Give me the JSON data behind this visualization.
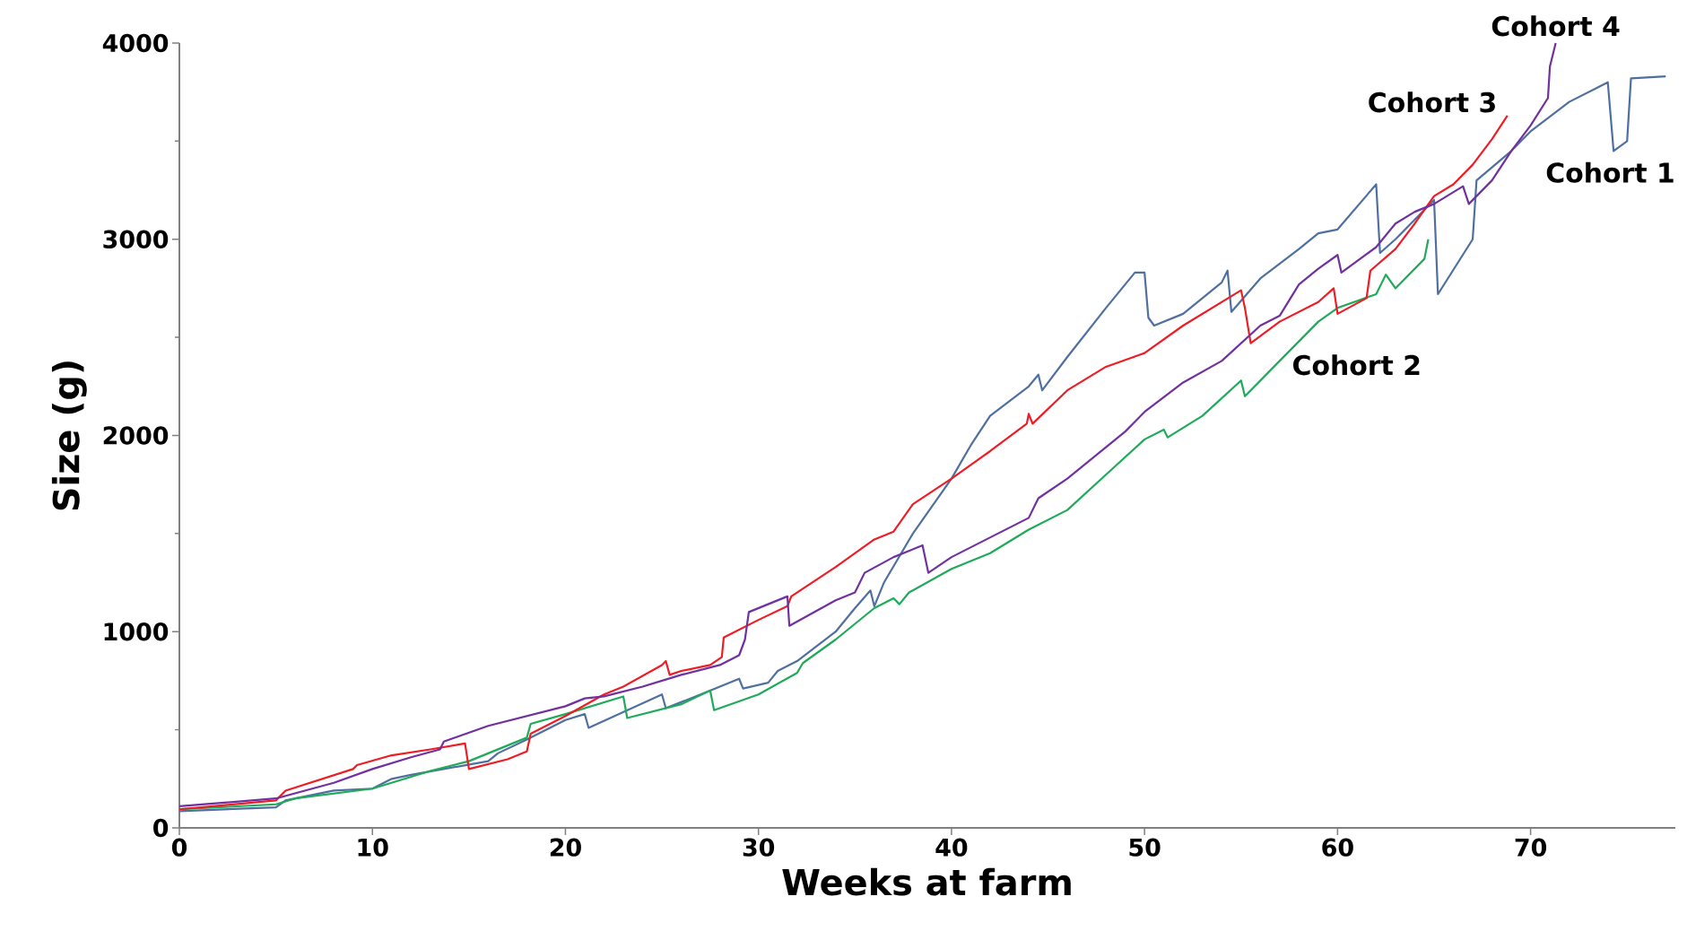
{
  "chart_data": {
    "type": "line",
    "xlabel": "Weeks at farm",
    "ylabel": "Size (g)",
    "xlim": [
      0,
      77.5
    ],
    "ylim": [
      0,
      4000
    ],
    "xticks": [
      0,
      10,
      20,
      30,
      40,
      50,
      60,
      70
    ],
    "yticks": [
      0,
      1000,
      2000,
      3000,
      4000
    ],
    "grid": false,
    "marker": "none",
    "line_style": "solid",
    "series": [
      {
        "name": "Cohort 1",
        "color": "#4f6fa0",
        "x": [
          0,
          5,
          5.5,
          8,
          10,
          11,
          12,
          16,
          16.5,
          18,
          20,
          21,
          21.2,
          25,
          25.2,
          27,
          29,
          29.2,
          30.5,
          31,
          32,
          34,
          35,
          35.8,
          36,
          36.5,
          38,
          40,
          41,
          42,
          44,
          44.5,
          44.7,
          46,
          48,
          49.5,
          50,
          50.2,
          50.5,
          52,
          54,
          54.3,
          54.5,
          56,
          58,
          59,
          60,
          62,
          62.2,
          63,
          65,
          65.2,
          67,
          67.2,
          69,
          70,
          72,
          73,
          74,
          74.3,
          75,
          75.2,
          77
        ],
        "values": [
          85,
          105,
          140,
          190,
          200,
          250,
          270,
          340,
          380,
          450,
          550,
          580,
          510,
          680,
          610,
          680,
          760,
          710,
          740,
          800,
          850,
          1000,
          1120,
          1210,
          1130,
          1250,
          1500,
          1780,
          1950,
          2100,
          2250,
          2310,
          2230,
          2400,
          2650,
          2830,
          2830,
          2600,
          2560,
          2620,
          2780,
          2840,
          2630,
          2800,
          2950,
          3030,
          3050,
          3280,
          2930,
          3000,
          3200,
          2720,
          3000,
          3300,
          3450,
          3550,
          3700,
          3750,
          3800,
          3450,
          3500,
          3820,
          3830
        ]
      },
      {
        "name": "Cohort 2",
        "color": "#1faa5a",
        "x": [
          0,
          5,
          6,
          10,
          12,
          13,
          15,
          17,
          18,
          18.2,
          20,
          23,
          23.2,
          26,
          27.5,
          27.7,
          30,
          32,
          32.3,
          34,
          36,
          37,
          37.3,
          37.8,
          40,
          42,
          44,
          46,
          48,
          50,
          51,
          51.2,
          53,
          55,
          55.2,
          57,
          59,
          60,
          62,
          62.5,
          63,
          64.5,
          64.7
        ],
        "values": [
          95,
          120,
          150,
          200,
          260,
          290,
          340,
          420,
          460,
          530,
          580,
          670,
          560,
          630,
          700,
          600,
          680,
          790,
          840,
          960,
          1120,
          1170,
          1140,
          1200,
          1320,
          1400,
          1520,
          1620,
          1800,
          1980,
          2030,
          1990,
          2100,
          2280,
          2200,
          2380,
          2580,
          2650,
          2720,
          2820,
          2750,
          2900,
          3000
        ]
      },
      {
        "name": "Cohort 3",
        "color": "#ee1c24",
        "x": [
          0,
          5,
          5.5,
          9,
          9.2,
          11,
          13,
          14.8,
          15,
          17,
          18,
          18.2,
          20,
          22,
          23,
          25,
          25.2,
          25.4,
          26,
          27.5,
          28.1,
          28.2,
          30,
          31.5,
          31.7,
          34,
          36,
          37,
          38,
          40,
          42,
          43.9,
          44,
          44.2,
          46,
          48,
          50,
          52,
          54,
          55,
          55.2,
          55.5,
          57,
          59,
          59.8,
          60,
          61.5,
          61.7,
          63,
          64,
          65,
          66,
          67,
          68,
          68.8
        ],
        "values": [
          95,
          140,
          190,
          300,
          320,
          370,
          400,
          430,
          300,
          350,
          390,
          480,
          570,
          680,
          720,
          830,
          850,
          780,
          800,
          830,
          870,
          970,
          1060,
          1130,
          1180,
          1330,
          1470,
          1510,
          1650,
          1780,
          1920,
          2060,
          2110,
          2060,
          2230,
          2350,
          2420,
          2560,
          2680,
          2740,
          2650,
          2470,
          2580,
          2680,
          2750,
          2620,
          2700,
          2840,
          2950,
          3080,
          3220,
          3280,
          3380,
          3510,
          3630
        ]
      },
      {
        "name": "Cohort 4",
        "color": "#7030a0",
        "x": [
          0,
          5,
          8,
          10,
          12,
          13.5,
          13.7,
          16,
          18,
          20,
          21,
          22,
          24,
          26,
          28,
          29,
          29.3,
          29.5,
          31.5,
          31.6,
          34,
          35,
          35.5,
          37,
          38.5,
          38.8,
          40,
          42,
          44,
          44.5,
          46,
          48,
          49,
          50,
          52,
          54,
          56,
          57,
          58,
          59,
          60,
          60.2,
          62,
          63,
          64,
          65,
          66.5,
          66.8,
          68,
          69,
          70,
          70.9,
          71,
          71.3
        ],
        "values": [
          110,
          150,
          230,
          300,
          360,
          400,
          440,
          520,
          570,
          620,
          660,
          670,
          720,
          780,
          830,
          880,
          960,
          1100,
          1180,
          1030,
          1160,
          1200,
          1300,
          1380,
          1440,
          1300,
          1380,
          1480,
          1580,
          1680,
          1780,
          1940,
          2020,
          2120,
          2270,
          2380,
          2560,
          2610,
          2770,
          2850,
          2920,
          2830,
          2960,
          3080,
          3140,
          3180,
          3270,
          3180,
          3300,
          3450,
          3580,
          3720,
          3880,
          4000
        ]
      }
    ]
  }
}
